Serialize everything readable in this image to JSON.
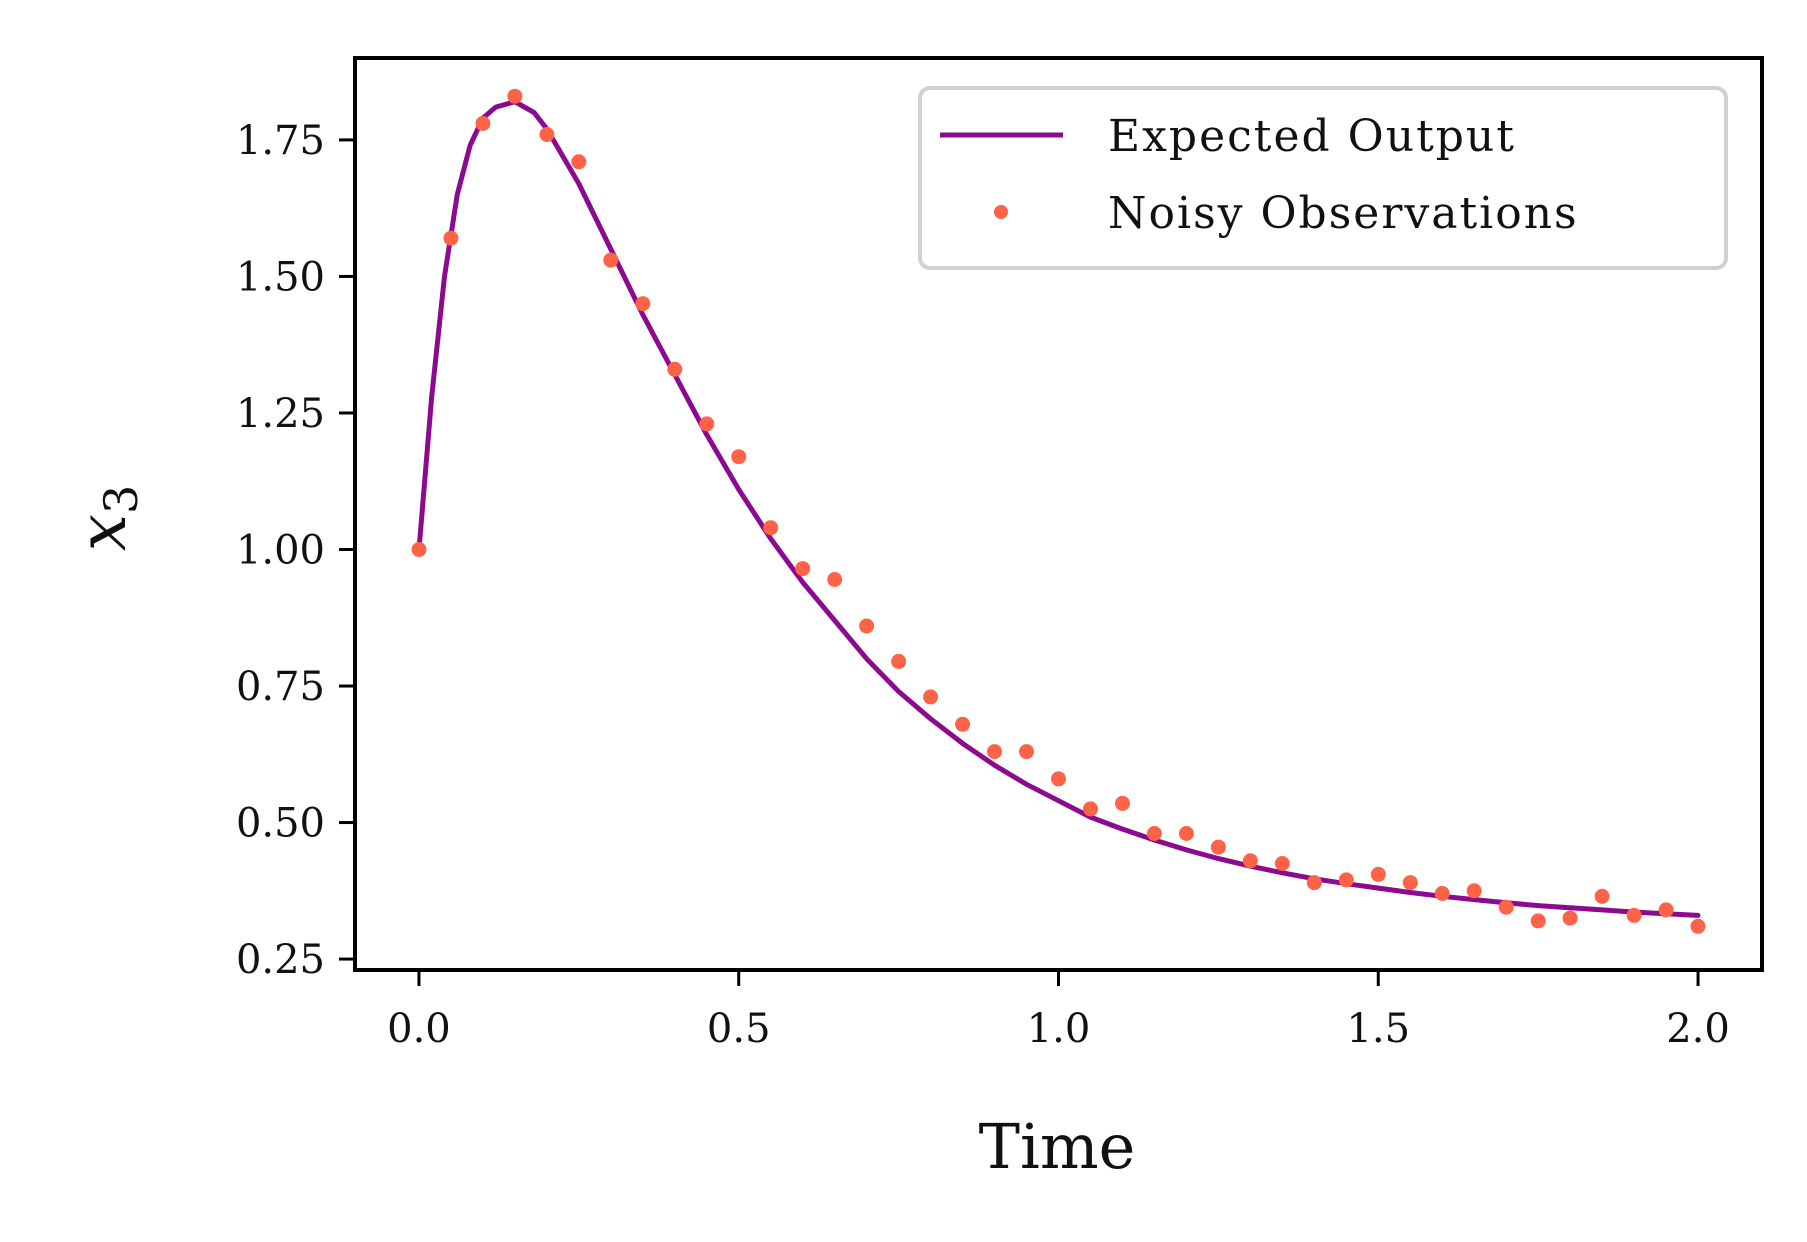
{
  "chart_data": {
    "type": "line",
    "xlabel": "Time",
    "ylabel_var": "x",
    "ylabel_sub": "3",
    "xlim": [
      -0.1,
      2.1
    ],
    "ylim": [
      0.23,
      1.9
    ],
    "xticks": [
      "0.0",
      "0.5",
      "1.0",
      "1.5",
      "2.0"
    ],
    "yticks": [
      "0.25",
      "0.50",
      "0.75",
      "1.00",
      "1.25",
      "1.50",
      "1.75"
    ],
    "legend_position": "top-right",
    "colors": {
      "line": "#8b0a90",
      "points": "#ff6347"
    },
    "series": [
      {
        "name": "Expected Output",
        "kind": "line",
        "x": [
          0.0,
          0.02,
          0.04,
          0.06,
          0.08,
          0.1,
          0.12,
          0.15,
          0.18,
          0.2,
          0.25,
          0.3,
          0.35,
          0.4,
          0.45,
          0.5,
          0.55,
          0.6,
          0.65,
          0.7,
          0.75,
          0.8,
          0.85,
          0.9,
          0.95,
          1.0,
          1.05,
          1.1,
          1.15,
          1.2,
          1.25,
          1.3,
          1.35,
          1.4,
          1.45,
          1.5,
          1.55,
          1.6,
          1.65,
          1.7,
          1.75,
          1.8,
          1.85,
          1.9,
          1.95,
          2.0
        ],
        "y": [
          1.0,
          1.28,
          1.5,
          1.65,
          1.74,
          1.79,
          1.81,
          1.82,
          1.8,
          1.77,
          1.67,
          1.55,
          1.43,
          1.32,
          1.21,
          1.11,
          1.02,
          0.94,
          0.87,
          0.8,
          0.74,
          0.69,
          0.645,
          0.605,
          0.57,
          0.54,
          0.51,
          0.488,
          0.468,
          0.45,
          0.434,
          0.42,
          0.408,
          0.397,
          0.388,
          0.38,
          0.372,
          0.365,
          0.359,
          0.353,
          0.348,
          0.344,
          0.34,
          0.336,
          0.333,
          0.33
        ]
      },
      {
        "name": "Noisy Observations",
        "kind": "points",
        "x": [
          0.0,
          0.05,
          0.1,
          0.15,
          0.2,
          0.25,
          0.3,
          0.35,
          0.4,
          0.45,
          0.5,
          0.55,
          0.6,
          0.65,
          0.7,
          0.75,
          0.8,
          0.85,
          0.9,
          0.95,
          1.0,
          1.05,
          1.1,
          1.15,
          1.2,
          1.25,
          1.3,
          1.35,
          1.4,
          1.45,
          1.5,
          1.55,
          1.6,
          1.65,
          1.7,
          1.75,
          1.8,
          1.85,
          1.9,
          1.95,
          2.0
        ],
        "y": [
          1.0,
          1.57,
          1.78,
          1.83,
          1.76,
          1.71,
          1.53,
          1.45,
          1.33,
          1.23,
          1.17,
          1.04,
          0.965,
          0.945,
          0.86,
          0.795,
          0.73,
          0.68,
          0.63,
          0.63,
          0.58,
          0.525,
          0.535,
          0.48,
          0.48,
          0.455,
          0.43,
          0.425,
          0.39,
          0.395,
          0.405,
          0.39,
          0.37,
          0.375,
          0.345,
          0.32,
          0.325,
          0.365,
          0.33,
          0.34,
          0.31
        ]
      }
    ]
  }
}
